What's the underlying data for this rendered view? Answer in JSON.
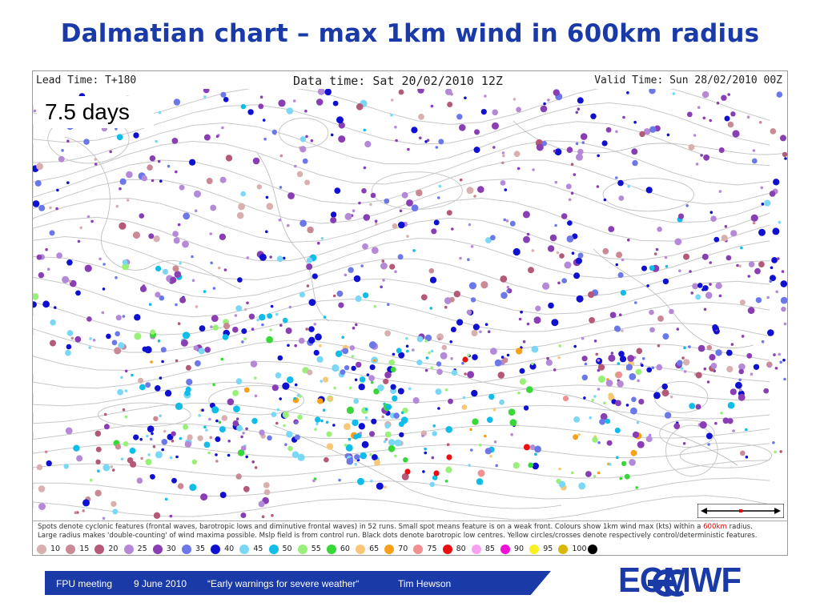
{
  "title": "Dalmatian chart – max 1km wind in 600km radius",
  "header": {
    "lead_time": "Lead Time: T+180",
    "data_time": "Data time:  Sat 20/02/2010 12Z",
    "valid_time": "Valid Time: Sun 28/02/2010 00Z"
  },
  "badge": "7.5 days",
  "caption": {
    "line1_pre": "Spots denote cyclonic features (frontal waves, barotropic lows and diminutive frontal waves) in 52 runs. Small spot means feature is on a weak front. Colours show 1km wind max (kts) within a ",
    "line1_red": "600km",
    "line1_post": " radius.",
    "line2": "Large radius makes 'double-counting' of wind maxima possible. Mslp field is from control run. Black dots denote barotropic low centres. Yellow circles/crosses denote respectively control/deterministic features."
  },
  "legend": [
    {
      "label": "10",
      "color": "#d9b0b0"
    },
    {
      "label": "15",
      "color": "#c98a96"
    },
    {
      "label": "20",
      "color": "#b45a78"
    },
    {
      "label": "25",
      "color": "#b48ad8"
    },
    {
      "label": "30",
      "color": "#8a3eb4"
    },
    {
      "label": "35",
      "color": "#6c78e8"
    },
    {
      "label": "40",
      "color": "#1010d0"
    },
    {
      "label": "45",
      "color": "#7ad8f6"
    },
    {
      "label": "50",
      "color": "#10bce8"
    },
    {
      "label": "55",
      "color": "#98f078"
    },
    {
      "label": "60",
      "color": "#38d838"
    },
    {
      "label": "65",
      "color": "#f8c878"
    },
    {
      "label": "70",
      "color": "#f8a018"
    },
    {
      "label": "75",
      "color": "#f09090"
    },
    {
      "label": "80",
      "color": "#e81010"
    },
    {
      "label": "85",
      "color": "#f8a0f0"
    },
    {
      "label": "90",
      "color": "#f010d8"
    },
    {
      "label": "95",
      "color": "#f8f020"
    },
    {
      "label": "100",
      "color": "#d8b808"
    },
    {
      "label": "",
      "color": "#000000"
    }
  ],
  "footer": {
    "meeting": "FPU meeting",
    "date": "9 June 2010",
    "talk": "“Early warnings for severe weather“",
    "author": "Tim Hewson",
    "logo": "ECMWF"
  },
  "colors": {
    "title_blue": "#1a3aa8",
    "footer_blue": "#1a3aa8"
  }
}
